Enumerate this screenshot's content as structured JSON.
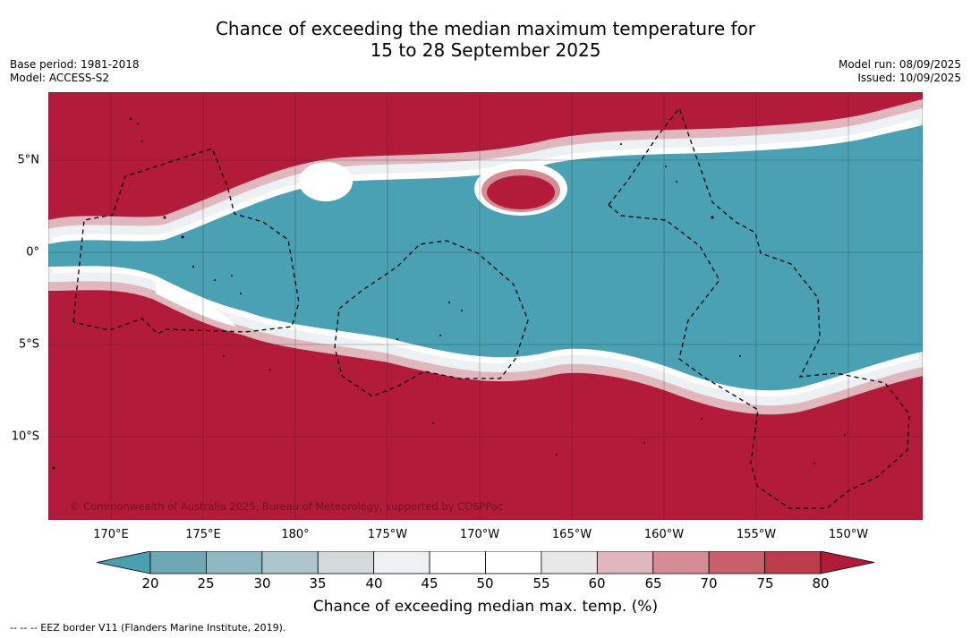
{
  "title_line1": "Chance of exceeding the median maximum temperature for",
  "title_line2": "15 to 28 September 2025",
  "base_period": "Base period: 1981-2018",
  "model": "Model: ACCESS-S2",
  "model_run": "Model run: 08/09/2025",
  "issued": "Issued: 10/09/2025",
  "copyright": "© Commonwealth of Australia 2025, Bureau of Meteorology, supported by COSPPac",
  "lat_labels": [
    "5°N",
    "0°",
    "5°S",
    "10°S"
  ],
  "lon_labels": [
    "170°E",
    "175°E",
    "180°",
    "175°W",
    "170°W",
    "165°W",
    "160°W",
    "155°W",
    "150°W"
  ],
  "colorbar": {
    "ticks": [
      "20",
      "25",
      "30",
      "35",
      "40",
      "45",
      "50",
      "55",
      "60",
      "65",
      "70",
      "75",
      "80"
    ],
    "colors": [
      "#6ea8b4",
      "#8eb9c3",
      "#adc6cb",
      "#d2d9db",
      "#eef1f3",
      "#ffffff",
      "#ffffff",
      "#e8e8e8",
      "#e0b7bd",
      "#d58c94",
      "#c8606c",
      "#bd3c4c"
    ],
    "low_color": "#4a9fb0",
    "high_color": "#b01c38",
    "label": "Chance of exceeding median max. temp. (%)"
  },
  "legend_eez": "--  --  -- EEZ border V11 (Flanders Marine Institute, 2019).",
  "colors": {
    "ocean_high": "#b21c3a",
    "ocean_low": "#4aa1b3",
    "transition": "#ffffff"
  }
}
